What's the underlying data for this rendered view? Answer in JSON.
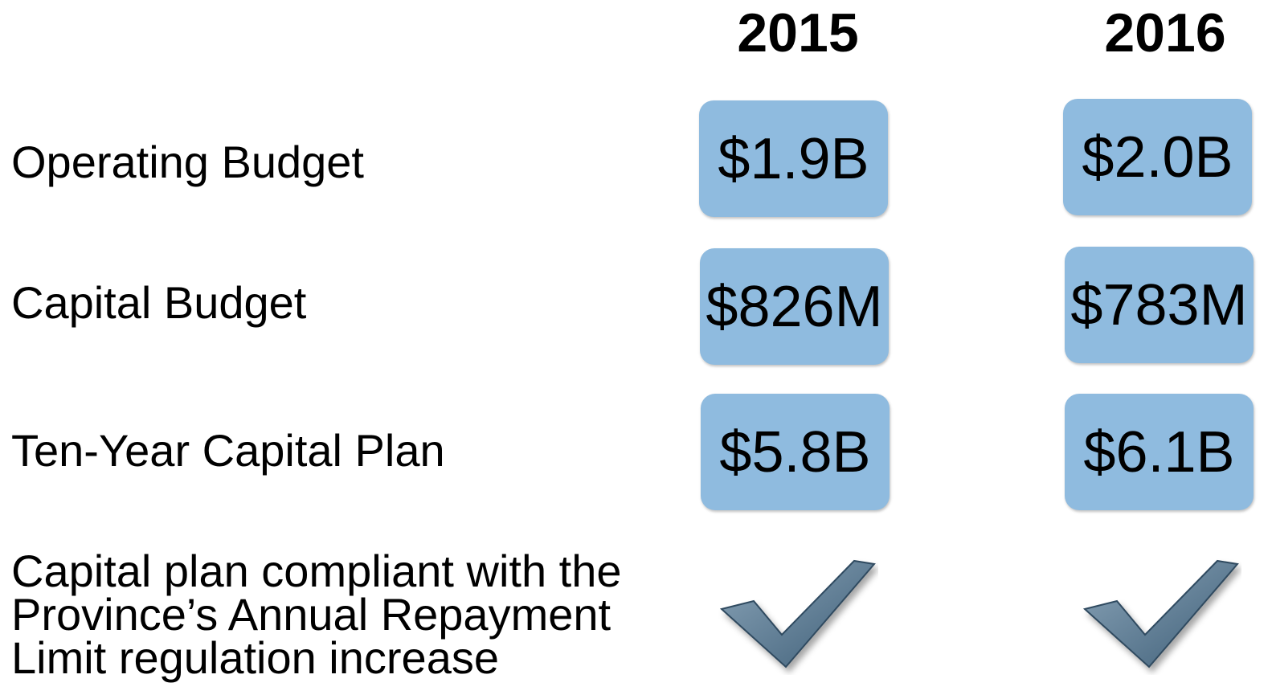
{
  "table": {
    "columns": [
      "2015",
      "2016"
    ],
    "rows": [
      {
        "label": "Operating Budget",
        "values": [
          "$1.9B",
          "$2.0B"
        ]
      },
      {
        "label": "Capital Budget",
        "values": [
          "$826M",
          "$783M"
        ]
      },
      {
        "label": "Ten-Year Capital Plan",
        "values": [
          "$5.8B",
          "$6.1B"
        ]
      },
      {
        "label": "Capital plan compliant with the Province’s Annual Repayment Limit regulation increase"
      }
    ]
  }
}
